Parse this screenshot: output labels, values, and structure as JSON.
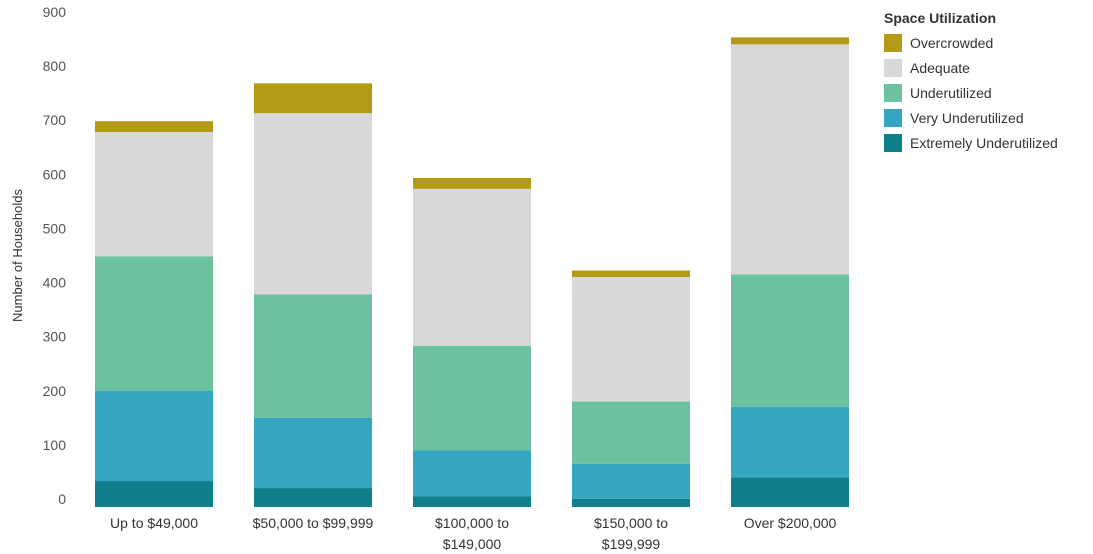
{
  "chart_data": {
    "type": "bar",
    "stacked": true,
    "categories": [
      "Up to $49,000",
      "$50,000 to $99,999",
      "$100,000 to $149,000",
      "$150,000 to $199,999",
      "Over $200,000"
    ],
    "category_lines": [
      [
        "Up to $49,000"
      ],
      [
        "$50,000 to $99,999"
      ],
      [
        "$100,000 to",
        "$149,000"
      ],
      [
        "$150,000 to",
        "$199,999"
      ],
      [
        "Over $200,000"
      ]
    ],
    "series": [
      {
        "name": "Extremely Underutilized",
        "color": "#0f7f8c",
        "values": [
          48,
          35,
          20,
          15,
          55
        ]
      },
      {
        "name": "Very Underutilized",
        "color": "#34a6bf",
        "values": [
          167,
          130,
          85,
          65,
          130
        ]
      },
      {
        "name": "Underutilized",
        "color": "#6cc29e",
        "values": [
          248,
          228,
          193,
          115,
          245
        ]
      },
      {
        "name": "Adequate",
        "color": "#d8d8d8",
        "values": [
          230,
          335,
          290,
          230,
          425
        ]
      },
      {
        "name": "Overcrowded",
        "color": "#b39b18",
        "values": [
          20,
          55,
          20,
          12,
          13
        ]
      }
    ],
    "ylabel": "Number of Households",
    "xlabel": "",
    "ylim": [
      0,
      900
    ],
    "yticks": [
      0,
      100,
      200,
      300,
      400,
      500,
      600,
      700,
      800,
      900
    ],
    "grid": false,
    "legend": {
      "title": "Space Utilization",
      "position": "top-right"
    }
  }
}
